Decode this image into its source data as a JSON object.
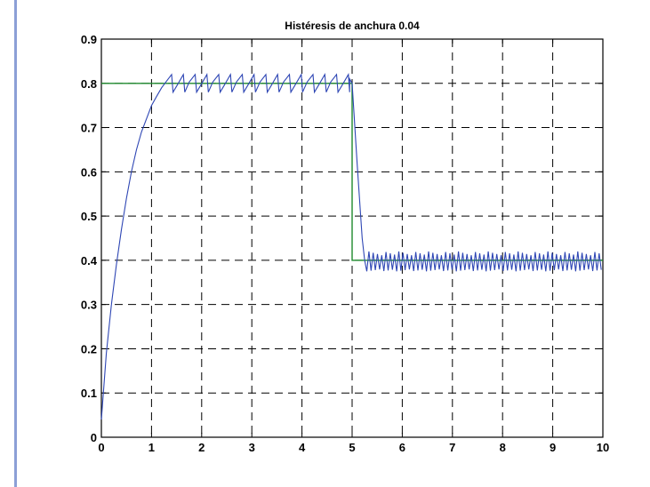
{
  "chart_data": {
    "type": "line",
    "title": "Histéresis de anchura 0.04",
    "xlabel": "",
    "ylabel": "",
    "xlim": [
      0,
      10
    ],
    "ylim": [
      0,
      0.9
    ],
    "xticks": [
      "0",
      "1",
      "2",
      "3",
      "4",
      "5",
      "6",
      "7",
      "8",
      "9",
      "10"
    ],
    "yticks": [
      "0",
      "0.1",
      "0.2",
      "0.3",
      "0.4",
      "0.5",
      "0.6",
      "0.7",
      "0.8",
      "0.9"
    ],
    "grid": true,
    "colors": {
      "output": "#2e46b4",
      "reference": "#1f8a2e"
    },
    "series": [
      {
        "role": "reference",
        "x": [
          0,
          5.0,
          5.0,
          10
        ],
        "y": [
          0.8,
          0.8,
          0.4,
          0.4
        ]
      },
      {
        "role": "output",
        "rise": {
          "x": [
            0,
            0.1,
            0.2,
            0.3,
            0.4,
            0.5,
            0.6,
            0.7,
            0.8,
            0.9,
            1.0,
            1.1,
            1.2,
            1.3,
            1.4
          ],
          "y": [
            0.04,
            0.19,
            0.3,
            0.39,
            0.47,
            0.54,
            0.6,
            0.65,
            0.69,
            0.72,
            0.75,
            0.77,
            0.79,
            0.805,
            0.82
          ]
        },
        "oscillation_high": {
          "x_start": 1.4,
          "x_end": 4.95,
          "period": 0.235,
          "low": 0.78,
          "high": 0.82
        },
        "drop": {
          "x": [
            4.95,
            5.0,
            5.1,
            5.2,
            5.25
          ],
          "y": [
            0.81,
            0.8,
            0.62,
            0.45,
            0.4
          ]
        },
        "oscillation_low": {
          "x_start": 5.25,
          "x_end": 10.0,
          "period": 0.085,
          "low": 0.375,
          "high": 0.42
        }
      }
    ]
  }
}
